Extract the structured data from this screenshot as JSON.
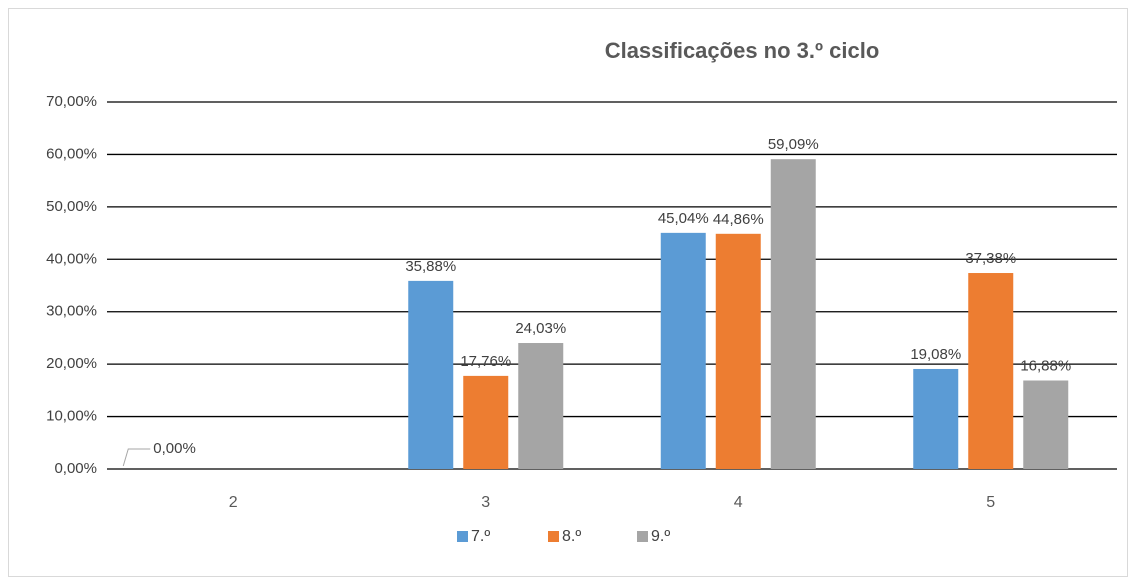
{
  "chart_data": {
    "type": "bar",
    "title": "Classificações no 3.º ciclo",
    "categories": [
      "2",
      "3",
      "4",
      "5"
    ],
    "series": [
      {
        "name": "7.º",
        "color": "#5b9bd5",
        "values": [
          0,
          35.88,
          45.04,
          19.08
        ],
        "value_labels": [
          "0,00%",
          "35,88%",
          "45,04%",
          "19,08%"
        ]
      },
      {
        "name": "8.º",
        "color": "#ed7d31",
        "values": [
          null,
          17.76,
          44.86,
          37.38
        ],
        "value_labels": [
          null,
          "17,76%",
          "44,86%",
          "37,38%"
        ]
      },
      {
        "name": "9.º",
        "color": "#a5a5a5",
        "values": [
          null,
          24.03,
          59.09,
          16.88
        ],
        "value_labels": [
          null,
          "24,03%",
          "59,09%",
          "16,88%"
        ]
      }
    ],
    "ylim": [
      0,
      70
    ],
    "yticks": [
      {
        "value": 0,
        "label": "0,00%"
      },
      {
        "value": 10,
        "label": "10,00%"
      },
      {
        "value": 20,
        "label": "20,00%"
      },
      {
        "value": 30,
        "label": "30,00%"
      },
      {
        "value": 40,
        "label": "40,00%"
      },
      {
        "value": 50,
        "label": "50,00%"
      },
      {
        "value": 60,
        "label": "60,00%"
      },
      {
        "value": 70,
        "label": "70,00%"
      }
    ],
    "grid": true,
    "legend": "bottom"
  }
}
